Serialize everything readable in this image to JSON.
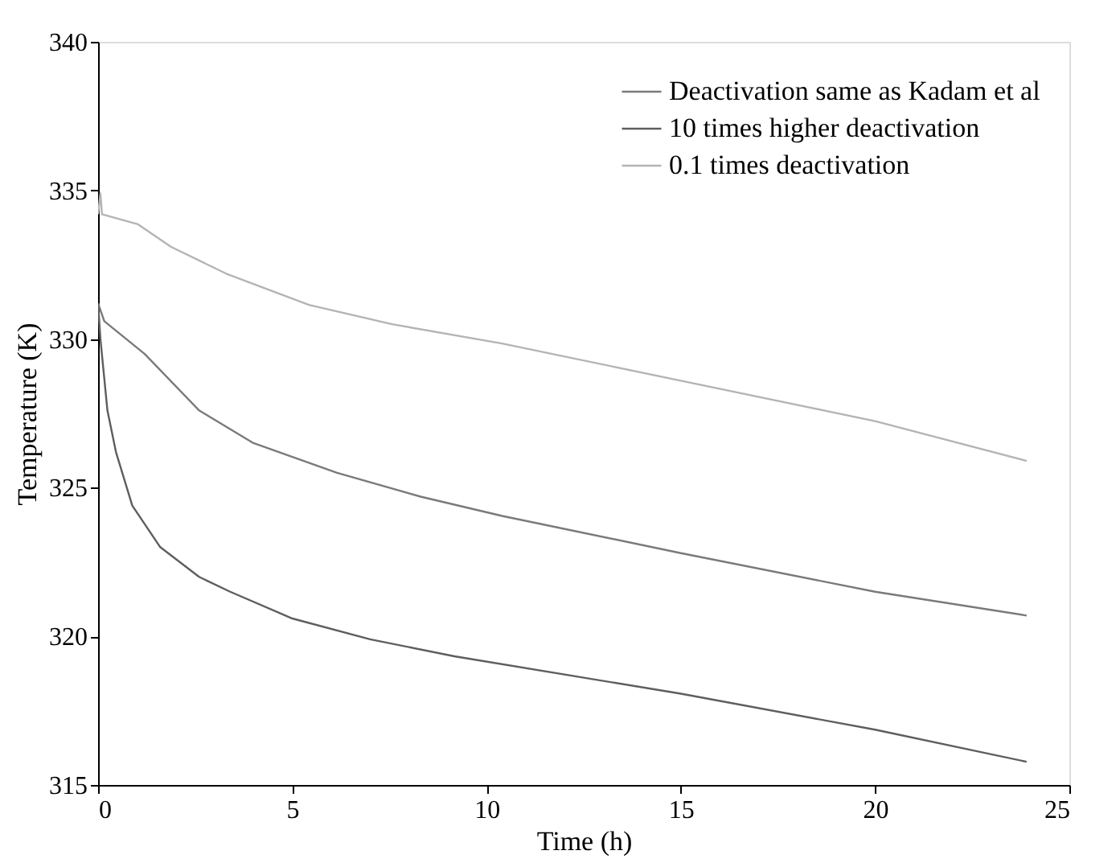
{
  "chart_data": {
    "type": "line",
    "xlabel": "Time (h)",
    "ylabel": "Temperature (K)",
    "xlim": [
      0,
      25
    ],
    "xticks": [
      0,
      5,
      10,
      15,
      20,
      25
    ],
    "ylim": [
      315,
      340
    ],
    "yticks": [
      315,
      320,
      325,
      330,
      335,
      340
    ],
    "grid": false,
    "legend": "top right",
    "line_style": "solid",
    "marker": "none",
    "series": [
      {
        "name": "Deactivation same as Kadam et al",
        "color": "#7a7a7a",
        "x": [
          0,
          0.16,
          1.2,
          2.6,
          4.0,
          6.15,
          8.3,
          10.4,
          15,
          20,
          23.9
        ],
        "values": [
          331.2,
          330.6,
          329.5,
          327.6,
          326.5,
          325.5,
          324.7,
          324.05,
          322.8,
          321.5,
          320.7
        ]
      },
      {
        "name": "10 times higher deactivation",
        "color": "#5e5e5e",
        "x": [
          0,
          0.06,
          0.24,
          0.46,
          0.88,
          1.6,
          2.6,
          3.4,
          5,
          7,
          9.17,
          15,
          20,
          23.9
        ],
        "values": [
          331.2,
          330.0,
          327.6,
          326.2,
          324.4,
          323.0,
          322.0,
          321.5,
          320.6,
          319.9,
          319.33,
          318.07,
          316.86,
          315.78
        ]
      },
      {
        "name": "0.1 times deactivation",
        "color": "#b4b4b4",
        "x": [
          0,
          0.06,
          0.1,
          1.03,
          1.88,
          3.3,
          5.43,
          7.57,
          10.4,
          15,
          20,
          23.9
        ],
        "values": [
          334.2,
          334.9,
          334.2,
          333.86,
          333.1,
          332.2,
          331.15,
          330.5,
          329.85,
          328.6,
          327.24,
          325.9
        ]
      }
    ]
  }
}
